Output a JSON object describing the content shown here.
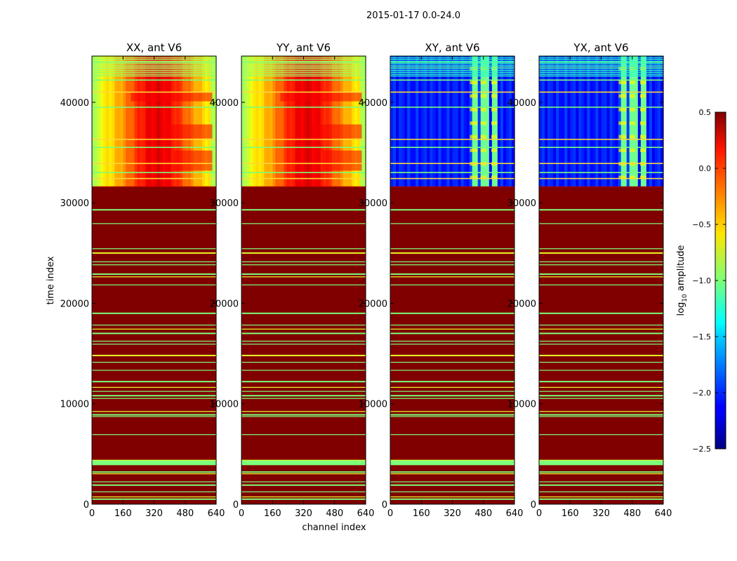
{
  "chart_data": {
    "type": "heatmap",
    "suptitle": "2015-01-17 0.0-24.0",
    "xlabel": "channel index",
    "ylabel": "time index",
    "xlim": [
      0,
      640
    ],
    "ylim": [
      0,
      44600
    ],
    "xticks": [
      "0",
      "160",
      "320",
      "480",
      "640"
    ],
    "yticks": [
      "0",
      "10000",
      "20000",
      "30000",
      "40000"
    ],
    "panels": [
      {
        "title": "XX, ant V6",
        "kind": "parallel"
      },
      {
        "title": "YY, ant V6",
        "kind": "parallel"
      },
      {
        "title": "XY, ant V6",
        "kind": "cross"
      },
      {
        "title": "YX, ant V6",
        "kind": "cross"
      }
    ],
    "data_start_time": 31600,
    "blank_fill_log10": 0.5,
    "rfi_channel_bands": [
      [
        410,
        450
      ],
      [
        465,
        495
      ],
      [
        520,
        550
      ]
    ],
    "flagged_rows_below": [
      500,
      700,
      1200,
      1900,
      2200,
      3000,
      3200,
      3900,
      4100,
      4350,
      6900,
      8700,
      8900,
      9200,
      10500,
      10800,
      11200,
      11600,
      12200,
      13300,
      14100,
      14800,
      15900,
      16200,
      17000,
      17400,
      17800,
      19000,
      21800,
      22600,
      22900,
      23800,
      24100,
      25000,
      25400,
      27900,
      29300
    ],
    "flagged_rows_above": [
      32400,
      33000,
      33900,
      35500,
      36300,
      39500,
      41000,
      42200,
      43500,
      44000
    ],
    "colorbar": {
      "label": "log",
      "label_sub": "10",
      "label_rest": " amplitude",
      "min": -2.5,
      "max": 0.5,
      "ticks": [
        "0.5",
        "0.0",
        "−0.5",
        "−1.0",
        "−1.5",
        "−2.0",
        "−2.5"
      ],
      "tick_values": [
        0.5,
        0.0,
        -0.5,
        -1.0,
        -1.5,
        -2.0,
        -2.5
      ]
    }
  }
}
